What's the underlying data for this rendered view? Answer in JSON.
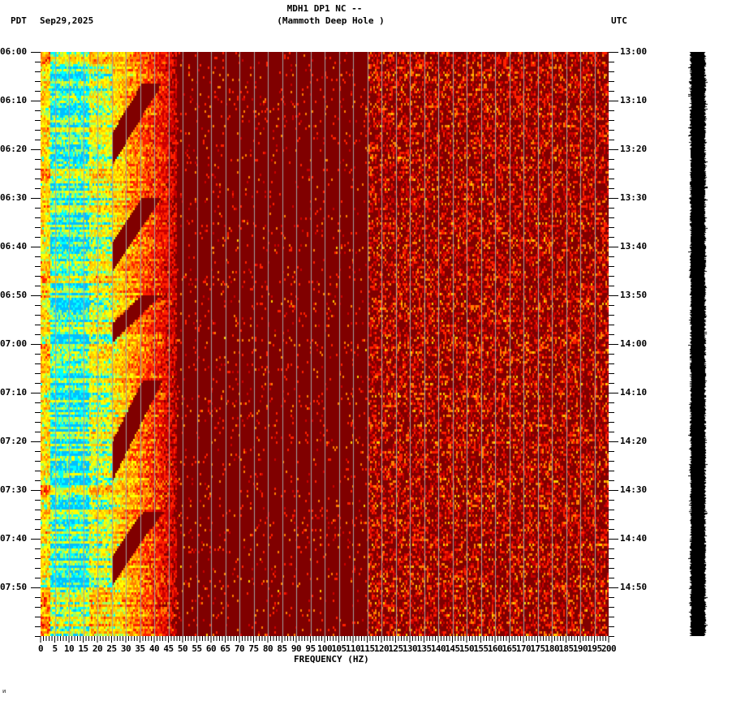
{
  "header": {
    "title_line1": "MDH1 DP1 NC --",
    "title_line2": "(Mammoth Deep Hole )",
    "left_timezone": "PDT",
    "date": "Sep29,2025",
    "right_timezone": "UTC"
  },
  "footer": {
    "corner_mark": "ᴎ"
  },
  "colors": {
    "background_low": "#800000",
    "gridline": "#a0a0a0",
    "trace": "#000000",
    "colormap": [
      "#800000",
      "#cc0000",
      "#ff2000",
      "#ff8000",
      "#ffcc00",
      "#ffff00",
      "#a0ff60",
      "#00ffff",
      "#00c0ff"
    ]
  },
  "chart_data": {
    "type": "heatmap",
    "title": "MDH1 DP1 NC -- (Mammoth Deep Hole )",
    "subtitle": "Sep29,2025",
    "xlabel": "FREQUENCY (HZ)",
    "ylabel_left": "PDT",
    "ylabel_right": "UTC",
    "xlim": [
      0,
      200
    ],
    "x_ticks": [
      "0",
      "5",
      "10",
      "15",
      "20",
      "25",
      "30",
      "35",
      "40",
      "45",
      "50",
      "55",
      "60",
      "65",
      "70",
      "75",
      "80",
      "85",
      "90",
      "95",
      "100",
      "105",
      "110",
      "115",
      "120",
      "125",
      "130",
      "135",
      "140",
      "145",
      "150",
      "155",
      "160",
      "165",
      "170",
      "175",
      "180",
      "185",
      "190",
      "195",
      "200"
    ],
    "x_minor_tick_hz": 1,
    "y_ticks_left": [
      "06:00",
      "06:10",
      "06:20",
      "06:30",
      "06:40",
      "06:50",
      "07:00",
      "07:10",
      "07:20",
      "07:30",
      "07:40",
      "07:50"
    ],
    "y_ticks_right": [
      "13:00",
      "13:10",
      "13:20",
      "13:30",
      "13:40",
      "13:50",
      "14:00",
      "14:10",
      "14:20",
      "14:30",
      "14:40",
      "14:50"
    ],
    "y_minor_tick_min": 2,
    "time_span_minutes": 120,
    "grid": {
      "vertical_every_hz": 5,
      "horizontal": false
    },
    "legend": "none",
    "features": {
      "high_energy_band_hz": [
        3,
        25
      ],
      "peak_band_hz": [
        5,
        15
      ],
      "broadband_noise_hz": [
        120,
        200
      ],
      "periodic_sweeps": [
        {
          "start": "06:00",
          "restart": "06:24"
        },
        {
          "start": "06:24",
          "restart": "06:46"
        },
        {
          "start": "06:46",
          "restart": "07:00"
        },
        {
          "start": "07:00",
          "restart": "07:29"
        },
        {
          "start": "07:29",
          "restart": "07:50"
        }
      ],
      "sweep_description": "diagonal quiet band descending from ~45 Hz to ~20 Hz within each cycle"
    }
  }
}
